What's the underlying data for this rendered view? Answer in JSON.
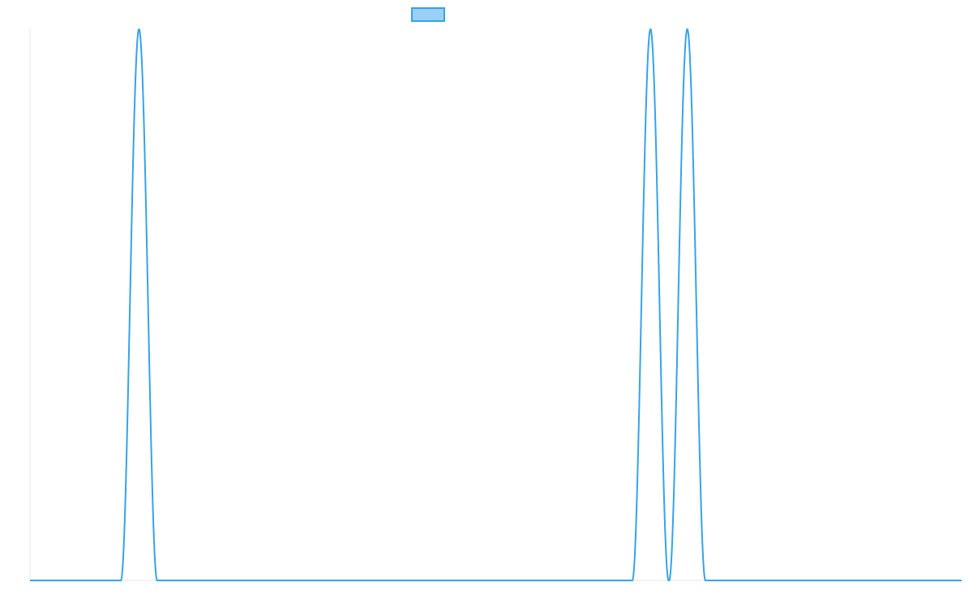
{
  "chart_data": {
    "type": "line",
    "title": "",
    "xlabel": "",
    "ylabel": "",
    "grid": false,
    "legend_position": "top",
    "xlim": [
      0,
      1000
    ],
    "ylim": [
      0,
      1
    ],
    "series": [
      {
        "label": "",
        "color": "#36A2EB",
        "fill_color": "#9AD0F5",
        "peaks": [
          {
            "center": 117,
            "half_width": 19.5
          },
          {
            "center": 666,
            "half_width": 19.5
          },
          {
            "center": 705.5,
            "half_width": 19.5
          }
        ]
      }
    ]
  }
}
